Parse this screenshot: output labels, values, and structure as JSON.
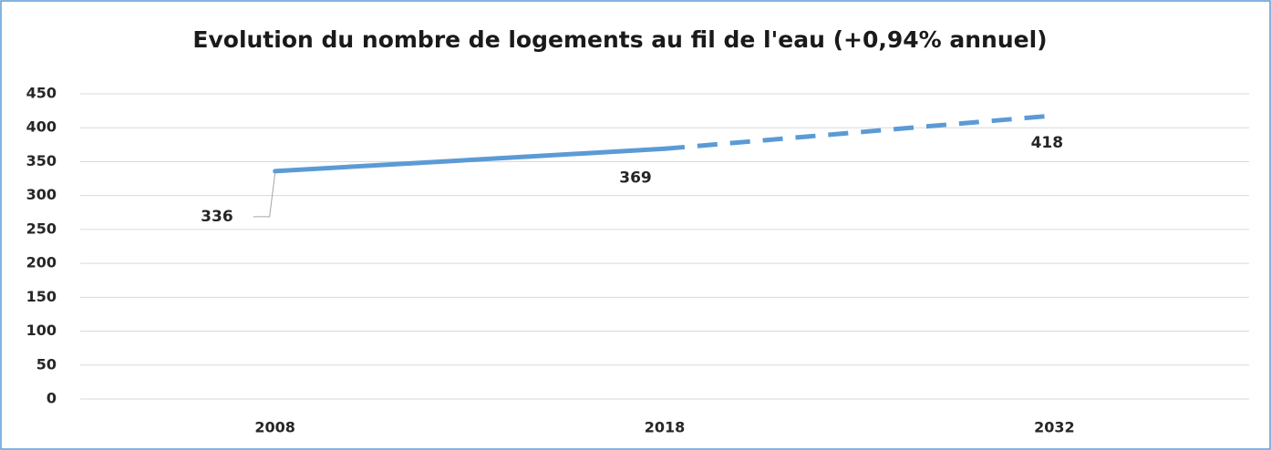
{
  "chart_data": {
    "type": "line",
    "title": "Evolution du nombre de logements au fil de l'eau (+0,94% annuel)",
    "categories": [
      "2008",
      "2018",
      "2032"
    ],
    "series": [
      {
        "color": "#5b9bd5",
        "dashed": false,
        "values": [
          336,
          369,
          null
        ]
      },
      {
        "color": "#5b9bd5",
        "dashed": true,
        "values": [
          null,
          369,
          418
        ]
      }
    ],
    "ylim": [
      0,
      450
    ],
    "yticks": [
      0,
      50,
      100,
      150,
      200,
      250,
      300,
      350,
      400,
      450
    ],
    "grid": true
  }
}
